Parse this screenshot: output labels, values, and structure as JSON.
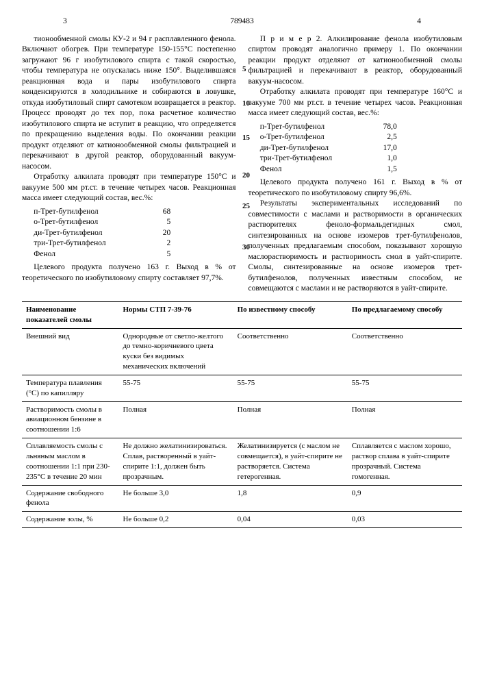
{
  "header": {
    "left_page": "3",
    "doc_number": "789483",
    "right_page": "4"
  },
  "margin_numbers": [
    "5",
    "10",
    "15",
    "20",
    "25",
    "30"
  ],
  "left_col": {
    "p1": "тионообменной смолы КУ-2 и 94 г расплавленного фенола. Включают обогрев. При температуре 150-155°С постепенно загружают 96 г изобутилового спирта с такой скоростью, чтобы температура не опускалась ниже 150°. Выделившаяся реакционная вода и пары изобутилового спирта конденсируются в холодильнике и собираются в ловушке, откуда изобутиловый спирт самотеком возвращается в реактор. Процесс проводят до тех пор, пока расчетное количество изобутилового спирта не вступит в реакцию, что определяется по прекращению выделения воды. По окончании реакции продукт отделяют от катионообменной смолы фильтрацией и перекачивают в другой реактор, оборудованный вакуум-насосом.",
    "p2": "Отработку алкилата проводят при температуре 150°С и вакууме 500 мм рт.ст. в течение четырех часов. Реакционная масса имеет следующий состав, вес.%:",
    "composition": [
      {
        "name": "п-Трет-бутилфенол",
        "value": "68"
      },
      {
        "name": "о-Трет-бутилфенол",
        "value": "5"
      },
      {
        "name": "ди-Трет-бутилфенол",
        "value": "20"
      },
      {
        "name": "три-Трет-бутилфенол",
        "value": "2"
      },
      {
        "name": "Фенол",
        "value": "5"
      }
    ],
    "p3": "Целевого продукта получено 163 г. Выход в % от теоретического по изобутиловому спирту составляет 97,7%."
  },
  "right_col": {
    "p1": "П р и м е р  2. Алкилирование фенола изобутиловым спиртом проводят аналогично примеру 1. По окончании реакции продукт отделяют от катионообменной смолы фильтрацией и перекачивают в реактор, оборудованный вакуум-насосом.",
    "p2": "Отработку алкилата проводят при температуре 160°С и вакууме 700 мм рт.ст. в течение четырех часов. Реакционная масса имеет следующий состав, вес.%:",
    "composition": [
      {
        "name": "п-Трет-бутилфенол",
        "value": "78,0"
      },
      {
        "name": "о-Трет-бутилфенол",
        "value": "2,5"
      },
      {
        "name": "ди-Трет-бутилфенол",
        "value": "17,0"
      },
      {
        "name": "три-Трет-бутилфенол",
        "value": "1,0"
      },
      {
        "name": "Фенол",
        "value": "1,5"
      }
    ],
    "p3": "Целевого продукта получено 161 г. Выход в % от теоретического по изобутиловому спирту 96,6%.",
    "p4": "Результаты экспериментальных исследований по совместимости с маслами и растворимости в органических растворителях феноло-формальдегидных смол, синтезированных на основе изомеров трет-бутилфенолов, полученных предлагаемым способом, показывают хорошую маслорастворимость и растворимость смол в уайт-спирите. Смолы, синтезированные на основе изомеров трет-бутилфенолов, полученных известным способом, не совмещаются с маслами и не растворяются в уайт-спирите."
  },
  "table": {
    "headers": [
      "Наименование показателей смолы",
      "Нормы СТП 7-39-76",
      "По известному способу",
      "По предлагаемому способу"
    ],
    "rows": [
      {
        "c0": "Внешний вид",
        "c1": "Однородные от светло-желтого до темно-коричневого цвета куски без видимых механических включений",
        "c2": "Соответственно",
        "c3": "Соответственно"
      },
      {
        "c0": "Температура плавления (°С) по капилляру",
        "c1": "55-75",
        "c2": "55-75",
        "c3": "55-75"
      },
      {
        "c0": "Растворимость смолы в авиационном бензине в соотношении 1:6",
        "c1": "Полная",
        "c2": "Полная",
        "c3": "Полная"
      },
      {
        "c0": "Сплавляемость смолы с льняным маслом в соотношении 1:1 при 230-235°С в течение 20 мин",
        "c1": "Не должно желатинизироваться. Сплав, растворенный в уайт-спирите 1:1, должен быть прозрачным.",
        "c2": "Желатинизируется (с маслом не совмещается), в уайт-спирите не растворяется. Система гетерогенная.",
        "c3": "Сплавляется с маслом хорошо, раствор сплава в уайт-спирите прозрачный. Система гомогенная."
      },
      {
        "c0": "Содержание свободного фенола",
        "c1": "Не больше 3,0",
        "c2": "1,8",
        "c3": "0,9"
      },
      {
        "c0": "Содержание золы, %",
        "c1": "Не больше 0,2",
        "c2": "0,04",
        "c3": "0,03"
      }
    ]
  }
}
